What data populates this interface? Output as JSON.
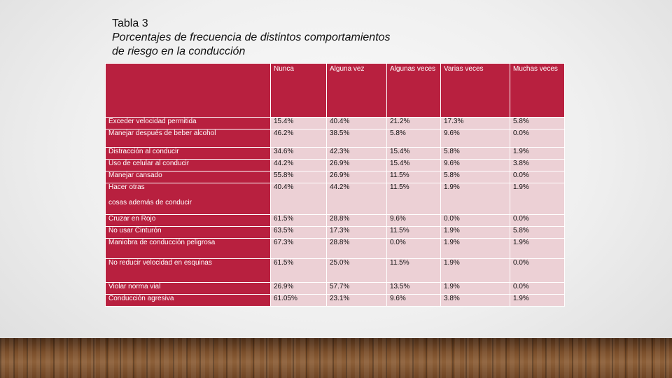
{
  "title": {
    "line1": "Tabla 3",
    "line2": "Porcentajes de frecuencia de distintos comportamientos",
    "line3": "de riesgo en la conducción"
  },
  "table": {
    "columns": [
      "",
      "Nunca",
      "Alguna vez",
      "Algunas veces",
      "Varias veces",
      "Muchas veces"
    ],
    "rows": [
      {
        "label": "Exceder velocidad permitida",
        "values": [
          "15.4%",
          "40.4%",
          "21.2%",
          "17.3%",
          "5.8%"
        ]
      },
      {
        "label": "Manejar después de beber alcohol",
        "values": [
          "46.2%",
          "38.5%",
          "5.8%",
          "9.6%",
          "0.0%"
        ]
      },
      {
        "label": "Distracción al conducir",
        "values": [
          "34.6%",
          "42.3%",
          "15.4%",
          "5.8%",
          "1.9%"
        ]
      },
      {
        "label": "Uso de celular al conducir",
        "values": [
          "44.2%",
          "26.9%",
          "15.4%",
          "9.6%",
          "3.8%"
        ]
      },
      {
        "label": "Manejar cansado",
        "values": [
          "55.8%",
          "26.9%",
          "11.5%",
          "5.8%",
          "0.0%"
        ]
      },
      {
        "label": "Hacer otras\n\ncosas además de conducir",
        "values": [
          "40.4%",
          "44.2%",
          "11.5%",
          "1.9%",
          "1.9%"
        ]
      },
      {
        "label": "Cruzar en Rojo",
        "values": [
          "61.5%",
          "28.8%",
          "9.6%",
          "0.0%",
          "0.0%"
        ]
      },
      {
        "label": "No usar Cinturón",
        "values": [
          "63.5%",
          "17.3%",
          "11.5%",
          "1.9%",
          "5.8%"
        ]
      },
      {
        "label": "Maniobra de conducción peligrosa",
        "values": [
          "67.3%",
          "28.8%",
          "0.0%",
          "1.9%",
          "1.9%"
        ]
      },
      {
        "label": "No reducir velocidad en esquinas",
        "values": [
          "61.5%",
          "25.0%",
          "11.5%",
          "1.9%",
          "0.0%"
        ]
      },
      {
        "label": "Violar norma vial",
        "values": [
          "26.9%",
          "57.7%",
          "13.5%",
          "1.9%",
          "0.0%"
        ]
      },
      {
        "label": "Conducción agresiva",
        "values": [
          "61.05%",
          "23.1%",
          "9.6%",
          "3.8%",
          "1.9%"
        ]
      }
    ]
  },
  "colors": {
    "header": "#b8203f",
    "cell": "#ecd0d5"
  }
}
